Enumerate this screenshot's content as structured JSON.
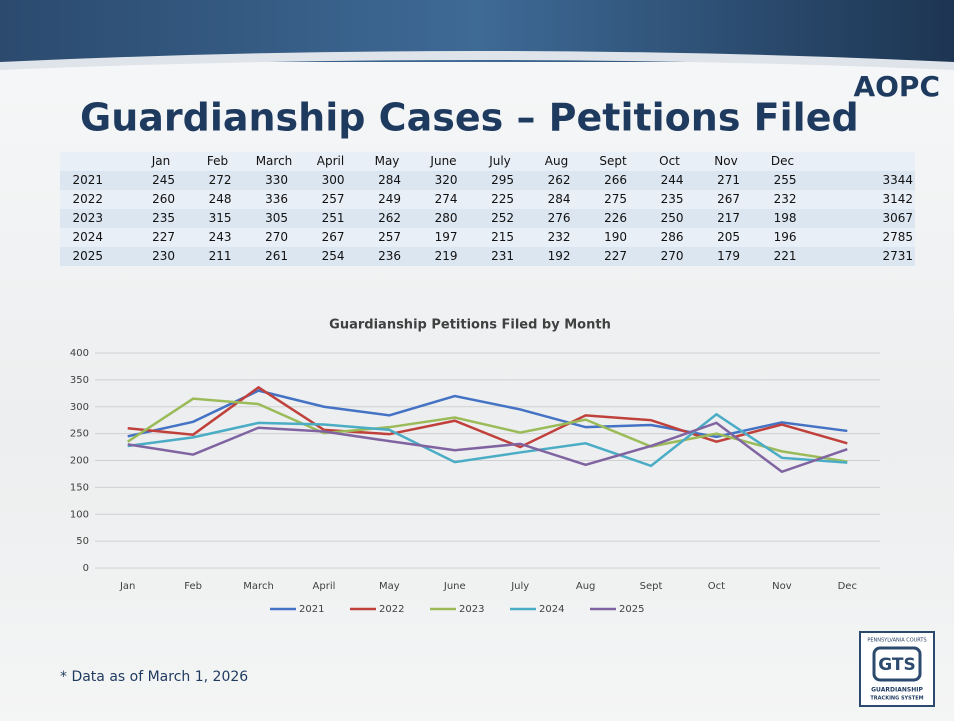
{
  "header": {
    "logo": "AOPC",
    "title": "Guardianship Cases – Petitions Filed"
  },
  "table": {
    "header": [
      "Jan",
      "Feb",
      "March",
      "April",
      "May",
      "June",
      "July",
      "Aug",
      "Sept",
      "Oct",
      "Nov",
      "Dec"
    ],
    "rows": [
      [
        2021,
        245,
        272,
        330,
        300,
        284,
        320,
        295,
        262,
        266,
        244,
        271,
        255,
        3344
      ],
      [
        2022,
        260,
        248,
        336,
        257,
        249,
        274,
        225,
        284,
        275,
        235,
        267,
        232,
        3142
      ],
      [
        2023,
        235,
        315,
        305,
        251,
        262,
        280,
        252,
        276,
        226,
        250,
        217,
        198,
        3067
      ],
      [
        2024,
        227,
        243,
        270,
        267,
        257,
        197,
        215,
        232,
        190,
        286,
        205,
        196,
        2785
      ],
      [
        2025,
        230,
        211,
        261,
        254,
        236,
        219,
        231,
        192,
        227,
        270,
        179,
        221,
        2731
      ]
    ]
  },
  "chart_data": {
    "type": "line",
    "title": "Guardianship Petitions Filed by Month",
    "categories": [
      "Jan",
      "Feb",
      "March",
      "April",
      "May",
      "June",
      "July",
      "Aug",
      "Sept",
      "Oct",
      "Nov",
      "Dec"
    ],
    "series": [
      {
        "name": "2021",
        "color": "#4472c4",
        "values": [
          245,
          272,
          330,
          300,
          284,
          320,
          295,
          262,
          266,
          244,
          271,
          255
        ]
      },
      {
        "name": "2022",
        "color": "#c0413b",
        "values": [
          260,
          248,
          336,
          257,
          249,
          274,
          225,
          284,
          275,
          235,
          267,
          232
        ]
      },
      {
        "name": "2023",
        "color": "#9bbb59",
        "values": [
          235,
          315,
          305,
          251,
          262,
          280,
          252,
          276,
          226,
          250,
          217,
          198
        ]
      },
      {
        "name": "2024",
        "color": "#4bacc6",
        "values": [
          227,
          243,
          270,
          267,
          257,
          197,
          215,
          232,
          190,
          286,
          205,
          196
        ]
      },
      {
        "name": "2025",
        "color": "#8064a2",
        "values": [
          230,
          211,
          261,
          254,
          236,
          219,
          231,
          192,
          227,
          270,
          179,
          221
        ]
      }
    ],
    "ylim": [
      0,
      400
    ],
    "yticks": [
      0,
      50,
      100,
      150,
      200,
      250,
      300,
      350,
      400
    ],
    "grid": true,
    "legend": "bottom"
  },
  "footnote": "* Data as of March 1, 2026",
  "badge": {
    "top": "PENNSYLVANIA COURTS",
    "mark": "GTS",
    "bottom1": "GUARDIANSHIP",
    "bottom2": "TRACKING SYSTEM"
  }
}
